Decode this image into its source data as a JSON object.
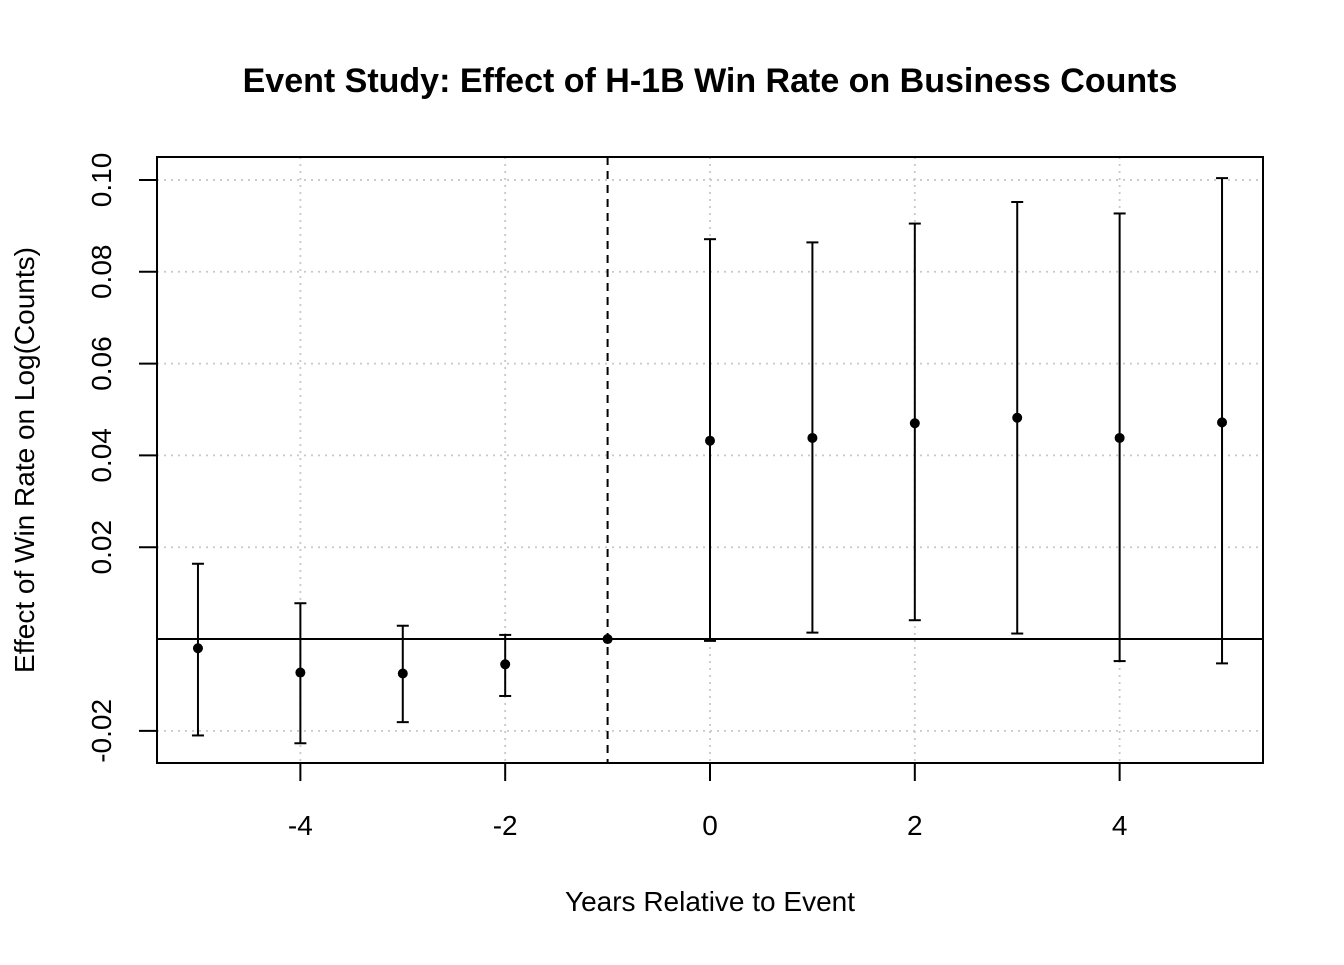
{
  "chart_data": {
    "type": "scatter",
    "title": "Event Study: Effect of H-1B Win Rate on Business Counts",
    "xlabel": "Years Relative to Event",
    "ylabel": "Effect of Win Rate on Log(Counts)",
    "xlim": [
      -5.4,
      5.4
    ],
    "ylim": [
      -0.027,
      0.105
    ],
    "x_ticks": [
      -4,
      -2,
      0,
      2,
      4
    ],
    "x_tick_labels": [
      "-4",
      "-2",
      "0",
      "2",
      "4"
    ],
    "y_ticks": [
      -0.02,
      0.02,
      0.04,
      0.06,
      0.08,
      0.1
    ],
    "y_tick_labels": [
      "-0.02",
      "0.02",
      "0.04",
      "0.06",
      "0.08",
      "0.10"
    ],
    "grid": true,
    "reference_lines": {
      "horizontal_y": 0,
      "vertical_dashed_x": -1
    },
    "series": [
      {
        "x": [
          -5,
          -4,
          -3,
          -2,
          -1,
          0,
          1,
          2,
          3,
          4,
          5
        ],
        "y": [
          -0.002,
          -0.0073,
          -0.0075,
          -0.0055,
          0.0,
          0.0432,
          0.0438,
          0.047,
          0.0482,
          0.0438,
          0.0472
        ],
        "lower": [
          -0.021,
          -0.0227,
          -0.0181,
          -0.0124,
          0.0,
          -0.0004,
          0.0014,
          0.0041,
          0.0012,
          -0.0048,
          -0.0053
        ],
        "upper": [
          0.0164,
          0.0078,
          0.0029,
          0.0009,
          0.0,
          0.0871,
          0.0864,
          0.0905,
          0.0952,
          0.0927,
          0.1004
        ]
      }
    ]
  }
}
